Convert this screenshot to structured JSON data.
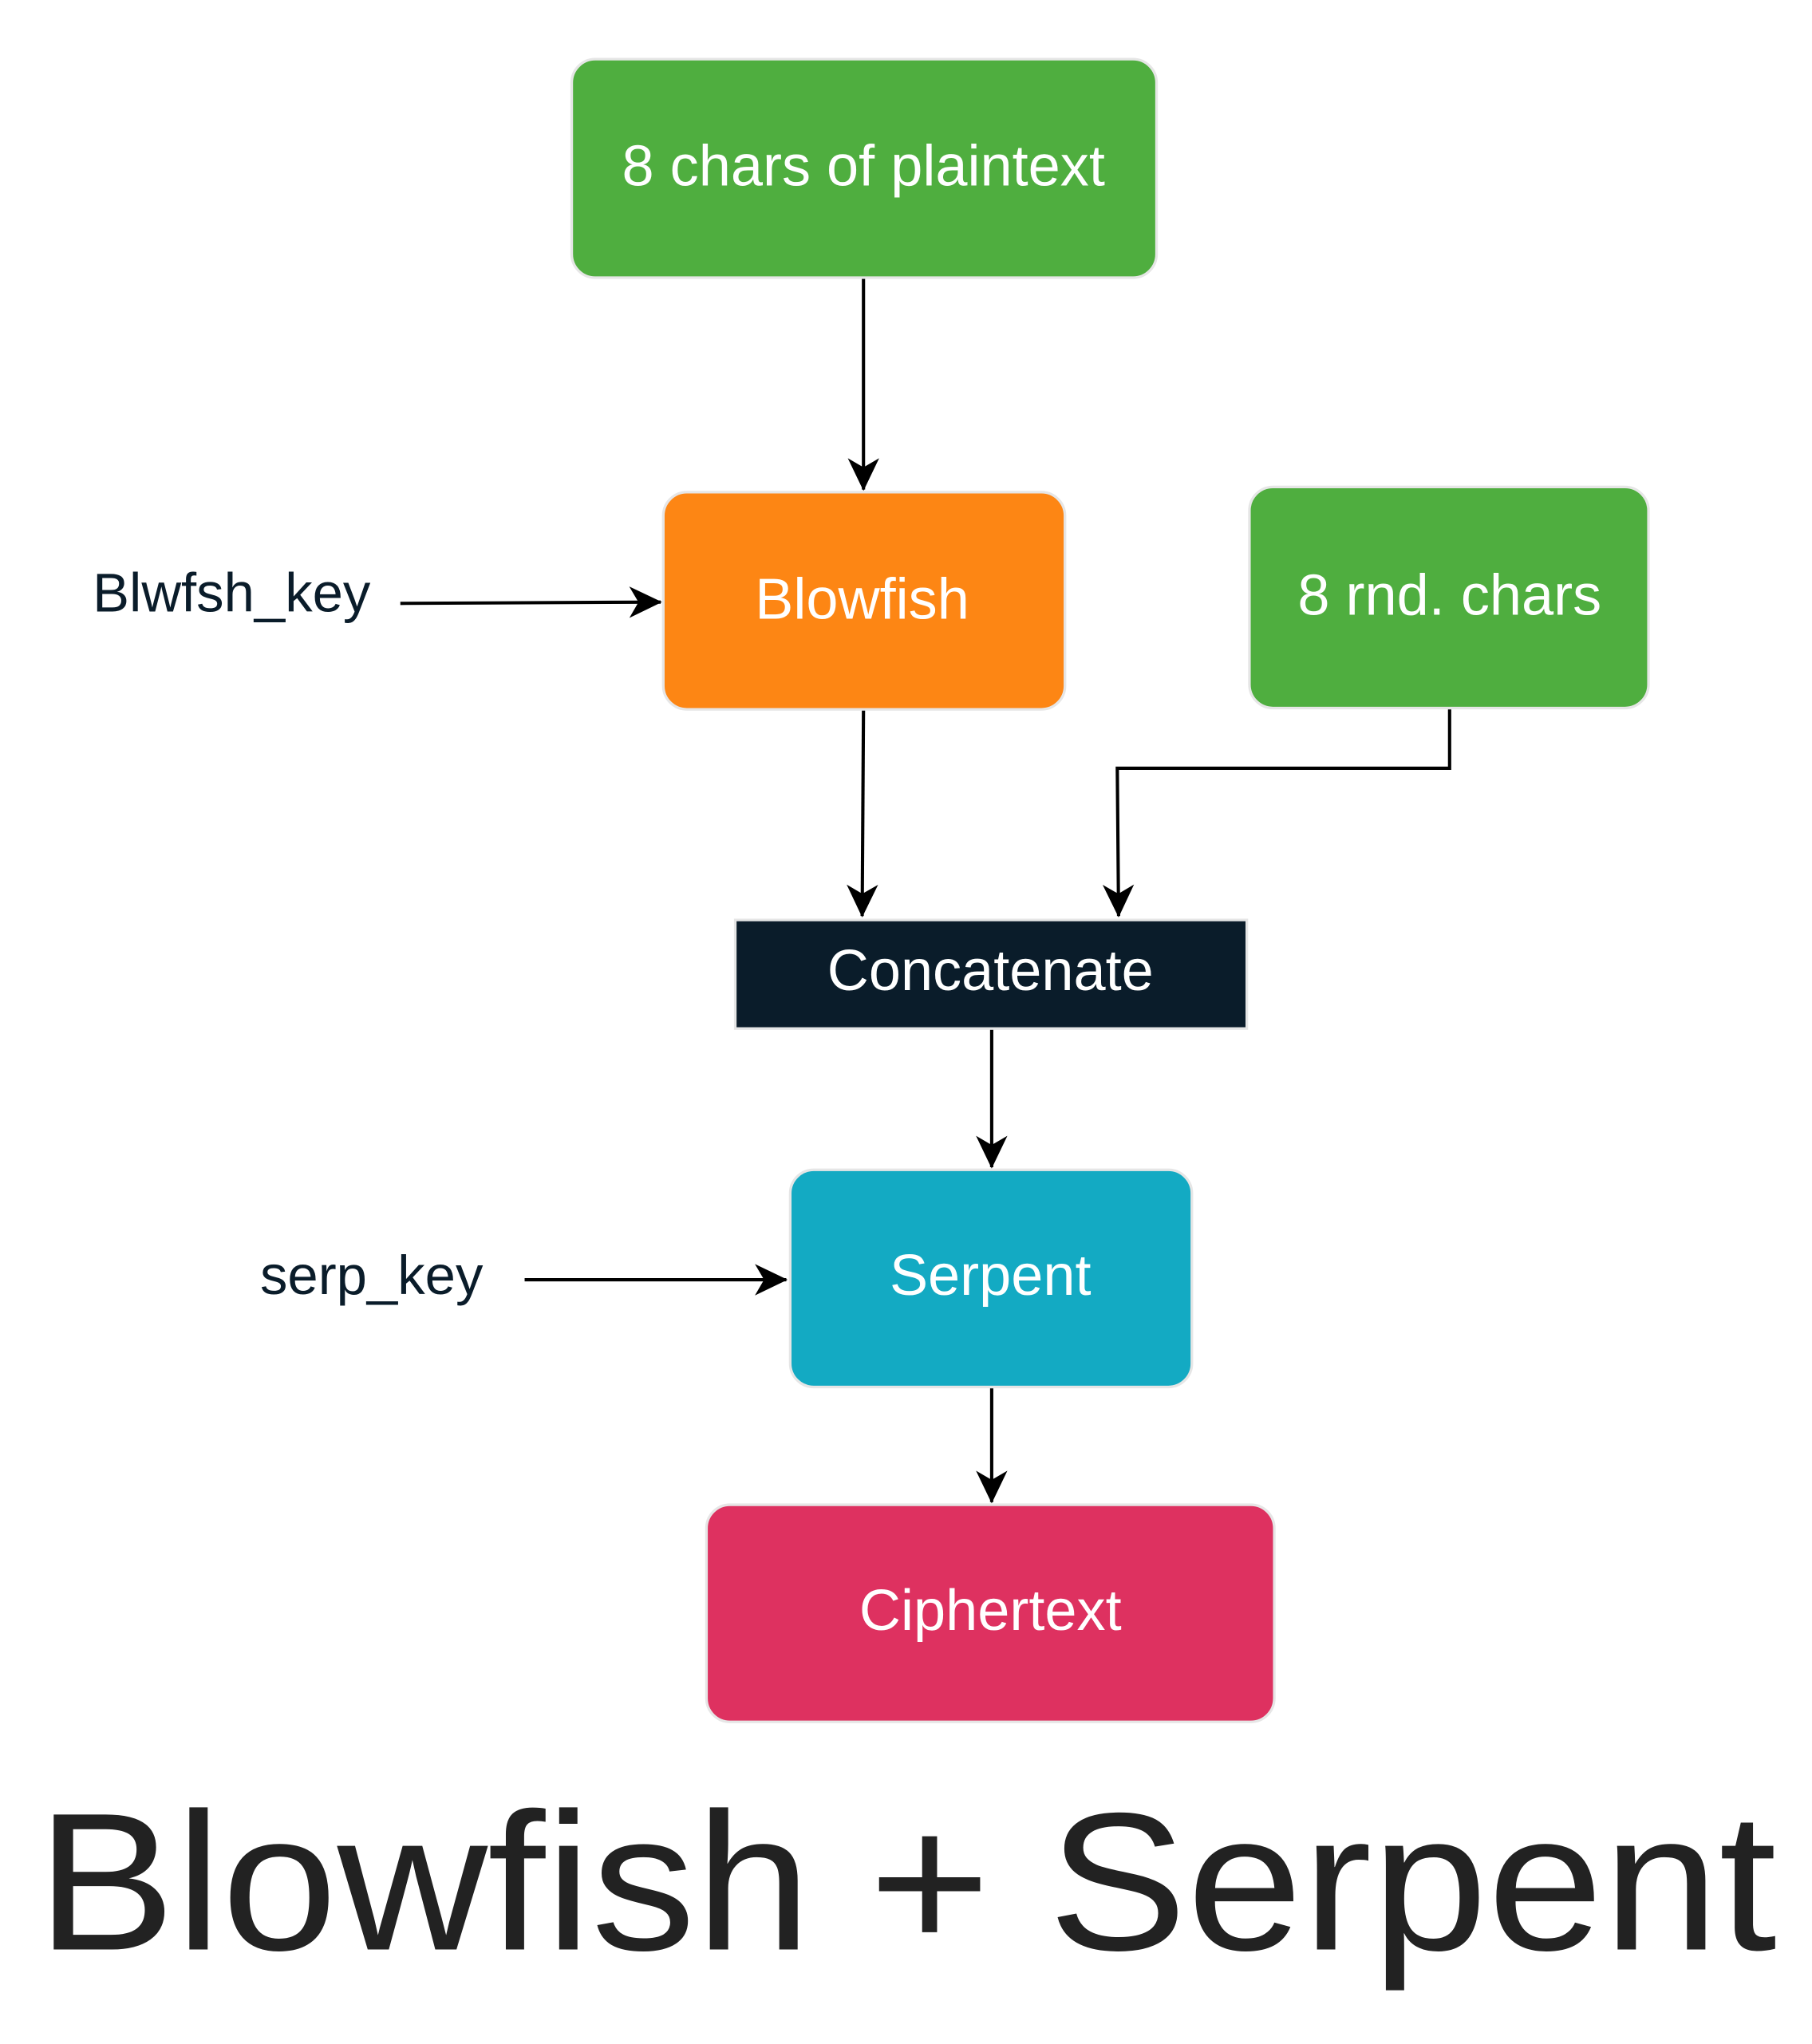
{
  "nodes": [
    {
      "label": "8 chars of plaintext"
    },
    {
      "label": "Blowfish"
    },
    {
      "label": "8 rnd. chars"
    },
    {
      "label": "Concatenate"
    },
    {
      "label": "Serpent"
    },
    {
      "label": "Ciphertext"
    }
  ],
  "inputs": [
    {
      "label": "Blwfsh_key"
    },
    {
      "label": "serp_key"
    }
  ],
  "title": "Blowfish + Serpent"
}
